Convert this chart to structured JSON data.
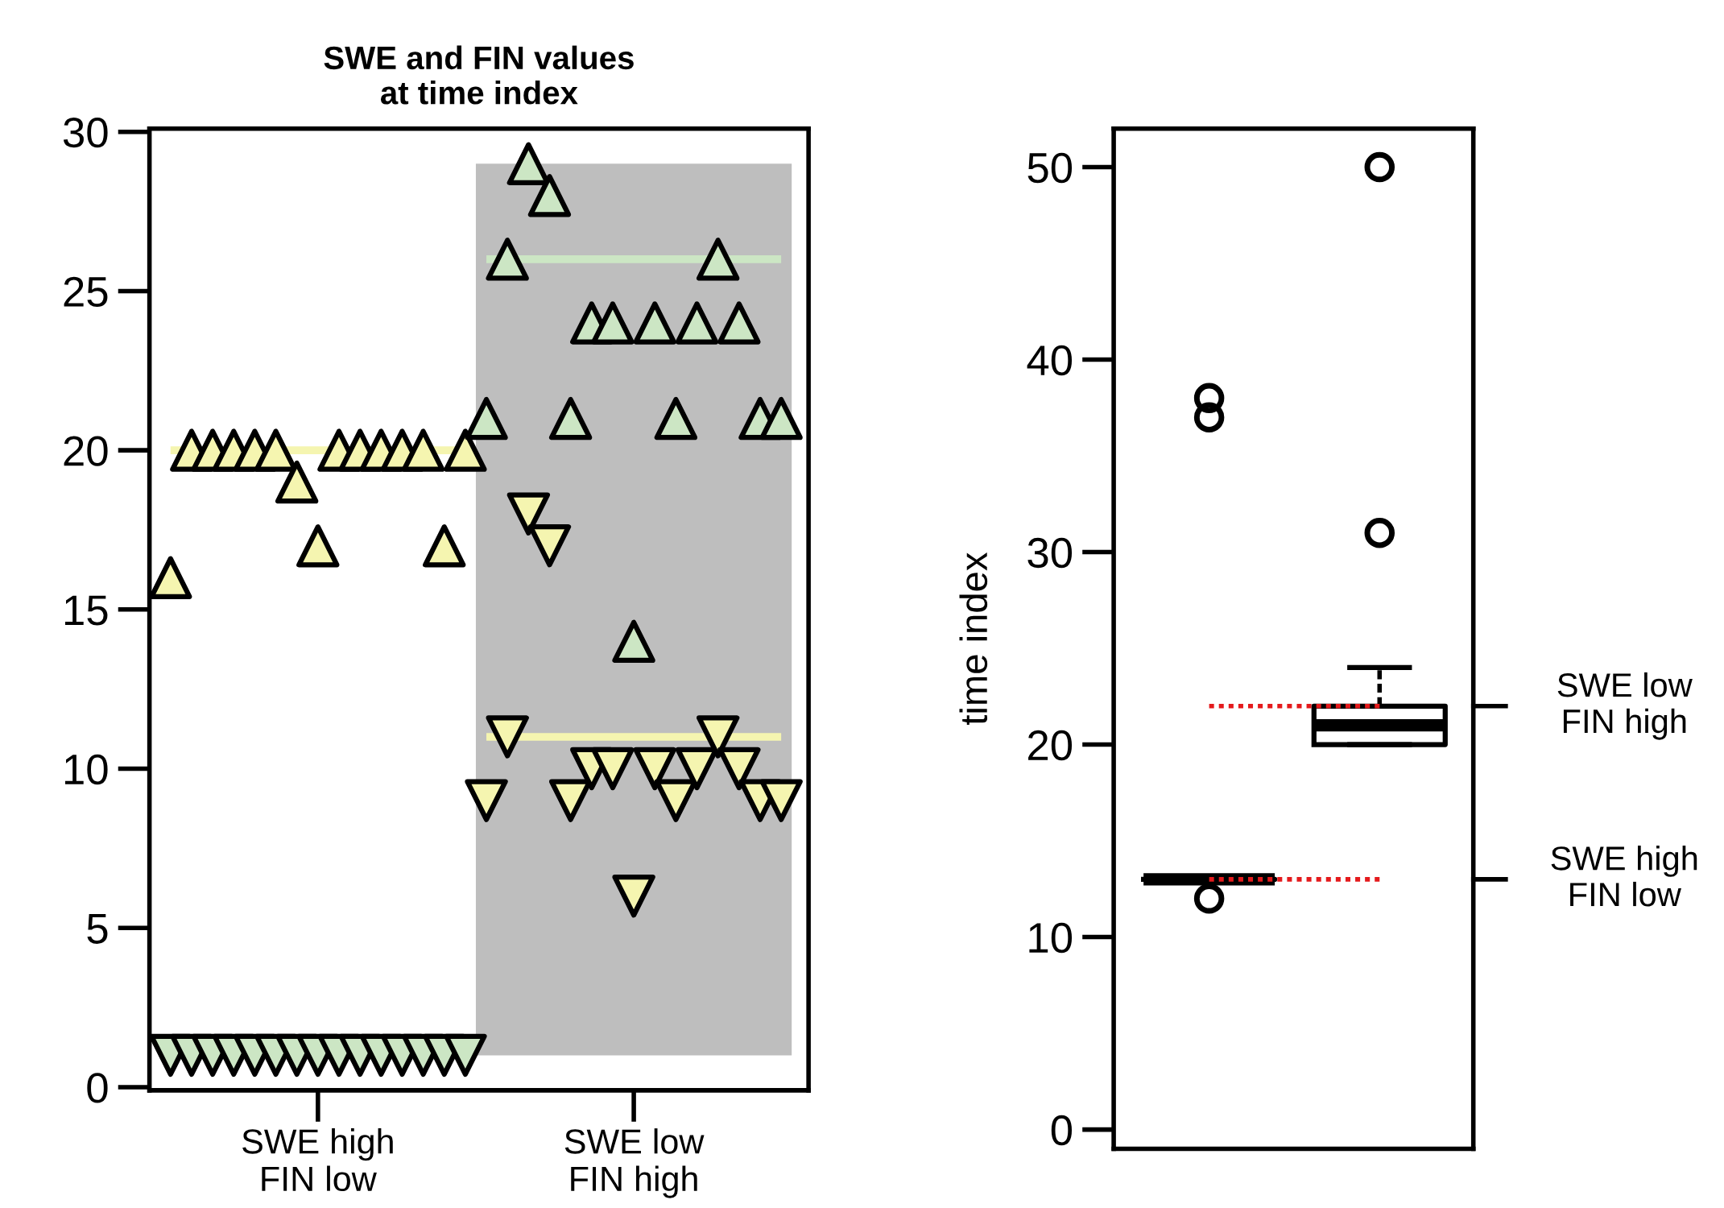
{
  "chart_data": [
    {
      "type": "scatter",
      "title": "SWE and FIN values\nat time index",
      "categories": [
        null,
        null,
        null,
        null,
        null,
        null,
        null,
        "SWE high\nFIN low",
        null,
        null,
        null,
        null,
        null,
        null,
        null,
        null,
        null,
        null,
        null,
        null,
        null,
        null,
        "SWE low\nFIN high",
        null,
        null,
        null,
        null,
        null,
        null,
        null
      ],
      "series": [
        {
          "marker": "triangle",
          "colors": [
            "#f5f5b0",
            "#f5f5b0",
            "#f5f5b0",
            "#f5f5b0",
            "#f5f5b0",
            "#f5f5b0",
            "#f5f5b0",
            "#f5f5b0",
            "#f5f5b0",
            "#f5f5b0",
            "#f5f5b0",
            "#f5f5b0",
            "#f5f5b0",
            "#f5f5b0",
            "#f5f5b0",
            "#cce6c4",
            "#cce6c4",
            "#cce6c4",
            "#cce6c4",
            "#cce6c4",
            "#cce6c4",
            "#cce6c4",
            "#cce6c4",
            "#cce6c4",
            "#cce6c4",
            "#cce6c4",
            "#cce6c4",
            "#cce6c4",
            "#cce6c4",
            "#cce6c4"
          ],
          "values": [
            16,
            20,
            20,
            20,
            20,
            20,
            19,
            17,
            20,
            20,
            20,
            20,
            20,
            17,
            20,
            21,
            26,
            29,
            28,
            21,
            24,
            24,
            14,
            24,
            21,
            24,
            26,
            24,
            21,
            21
          ]
        },
        {
          "marker": "triangle_down",
          "colors": [
            "#cce6c4",
            "#cce6c4",
            "#cce6c4",
            "#cce6c4",
            "#cce6c4",
            "#cce6c4",
            "#cce6c4",
            "#cce6c4",
            "#cce6c4",
            "#cce6c4",
            "#cce6c4",
            "#cce6c4",
            "#cce6c4",
            "#cce6c4",
            "#cce6c4",
            "#f5f5b0",
            "#f5f5b0",
            "#f5f5b0",
            "#f5f5b0",
            "#f5f5b0",
            "#f5f5b0",
            "#f5f5b0",
            "#f5f5b0",
            "#f5f5b0",
            "#f5f5b0",
            "#f5f5b0",
            "#f5f5b0",
            "#f5f5b0",
            "#f5f5b0",
            "#f5f5b0"
          ],
          "values": [
            1,
            1,
            1,
            1,
            1,
            1,
            1,
            1,
            1,
            1,
            1,
            1,
            1,
            1,
            1,
            9,
            11,
            18,
            17,
            9,
            10,
            10,
            6,
            10,
            9,
            10,
            11,
            10,
            9,
            9
          ]
        },
        {
          "type": "line",
          "color": "#f5f5b0",
          "values": [
            20,
            20,
            20,
            20,
            20,
            20,
            20,
            20,
            20,
            20,
            20,
            20,
            20,
            20,
            20,
            null,
            null,
            null,
            null,
            null,
            null,
            null,
            null,
            null,
            null,
            null,
            null,
            null,
            null,
            null
          ]
        },
        {
          "type": "line",
          "color": "#cce6c4",
          "values": [
            null,
            null,
            null,
            null,
            null,
            null,
            null,
            null,
            null,
            null,
            null,
            null,
            null,
            null,
            null,
            26,
            26,
            26,
            26,
            26,
            26,
            26,
            26,
            26,
            26,
            26,
            26,
            26,
            26,
            26
          ]
        },
        {
          "type": "line",
          "color": "#f5f5b0",
          "values": [
            null,
            null,
            null,
            null,
            null,
            null,
            null,
            null,
            null,
            null,
            null,
            null,
            null,
            null,
            null,
            11,
            11,
            11,
            11,
            11,
            11,
            11,
            11,
            11,
            11,
            11,
            11,
            11,
            11,
            11
          ]
        }
      ],
      "ylim": [
        -0.1,
        30.1
      ],
      "yticks": [
        0,
        5,
        10,
        15,
        20,
        25,
        30
      ]
    },
    {
      "type": "box",
      "ylabel": "time index",
      "categories": [
        null,
        null
      ],
      "boxes": [
        {
          "low": 13,
          "q1": 13,
          "median": 13,
          "q3": 13,
          "high": 13,
          "outliers": [
            12,
            37,
            38
          ]
        },
        {
          "low": 20,
          "q1": 20,
          "median": 21,
          "q3": 22,
          "high": 24,
          "outliers": [
            31,
            50
          ]
        }
      ],
      "series": [
        {
          "type": "line",
          "color": "#e41a1c",
          "line_style": "dashed",
          "values": [
            22,
            22
          ]
        },
        {
          "type": "line",
          "color": "#e41a1c",
          "line_style": "dashed",
          "values": [
            13,
            13
          ]
        }
      ],
      "ylim": [
        -1,
        52
      ],
      "yticks": [
        0,
        10,
        20,
        30,
        40,
        50
      ],
      "annotations": [
        "SWE low\nFIN high",
        "SWE high\nFIN low"
      ]
    }
  ]
}
